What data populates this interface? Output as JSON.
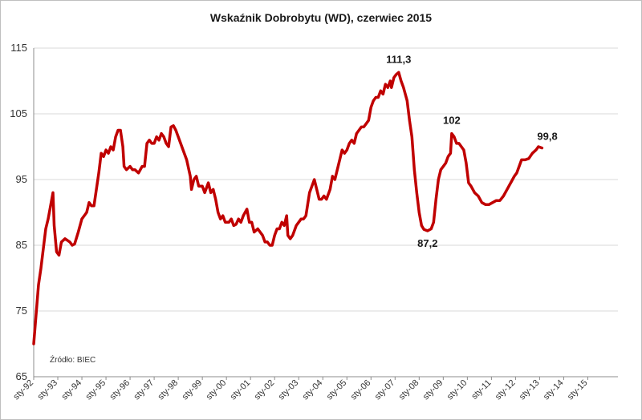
{
  "chart_data": {
    "type": "line",
    "title": "Wskaźnik Dobrobytu (WD), czerwiec 2015",
    "source_note": "Źródło: BIEC",
    "xlabel": "",
    "ylabel": "",
    "ylim": [
      65,
      115
    ],
    "yticks": [
      65,
      75,
      85,
      95,
      105,
      115
    ],
    "xlim": [
      1992.0,
      2016.25
    ],
    "grid": true,
    "legend": "none",
    "color": "#c00000",
    "x_tick_labels": [
      {
        "x": 1992,
        "label": "sty-92"
      },
      {
        "x": 1993,
        "label": "sty-93"
      },
      {
        "x": 1994,
        "label": "sty-94"
      },
      {
        "x": 1995,
        "label": "sty-95"
      },
      {
        "x": 1996,
        "label": "sty-96"
      },
      {
        "x": 1997,
        "label": "sty-97"
      },
      {
        "x": 1998,
        "label": "sty-98"
      },
      {
        "x": 1999,
        "label": "sty-99"
      },
      {
        "x": 2000,
        "label": "sty-00"
      },
      {
        "x": 2001,
        "label": "sty-01"
      },
      {
        "x": 2002,
        "label": "sty-02"
      },
      {
        "x": 2003,
        "label": "sty-03"
      },
      {
        "x": 2004,
        "label": "sty-04"
      },
      {
        "x": 2005,
        "label": "sty-05"
      },
      {
        "x": 2006,
        "label": "sty-06"
      },
      {
        "x": 2007,
        "label": "sty-07"
      },
      {
        "x": 2008,
        "label": "sty-08"
      },
      {
        "x": 2009,
        "label": "sty-09"
      },
      {
        "x": 2010,
        "label": "sty-10"
      },
      {
        "x": 2011,
        "label": "sty-11"
      },
      {
        "x": 2012,
        "label": "sty-12"
      },
      {
        "x": 2013,
        "label": "sty-13"
      },
      {
        "x": 2014,
        "label": "sty-14"
      },
      {
        "x": 2015,
        "label": "sty-15"
      }
    ],
    "series": [
      {
        "name": "",
        "points": [
          [
            1992.0,
            70.0
          ],
          [
            1992.1,
            74.5
          ],
          [
            1992.2,
            79.0
          ],
          [
            1992.3,
            81.5
          ],
          [
            1992.4,
            84.5
          ],
          [
            1992.5,
            87.5
          ],
          [
            1992.6,
            89.0
          ],
          [
            1992.7,
            91.0
          ],
          [
            1992.8,
            93.0
          ],
          [
            1992.85,
            88.0
          ],
          [
            1992.95,
            84.0
          ],
          [
            1993.05,
            83.5
          ],
          [
            1993.15,
            85.5
          ],
          [
            1993.3,
            86.0
          ],
          [
            1993.5,
            85.5
          ],
          [
            1993.6,
            85.0
          ],
          [
            1993.7,
            85.2
          ],
          [
            1993.85,
            87.0
          ],
          [
            1994.0,
            89.0
          ],
          [
            1994.1,
            89.5
          ],
          [
            1994.2,
            90.0
          ],
          [
            1994.3,
            91.5
          ],
          [
            1994.4,
            91.0
          ],
          [
            1994.5,
            91.0
          ],
          [
            1994.6,
            93.5
          ],
          [
            1994.7,
            96.0
          ],
          [
            1994.8,
            99.0
          ],
          [
            1994.9,
            98.5
          ],
          [
            1995.0,
            99.5
          ],
          [
            1995.1,
            99.0
          ],
          [
            1995.2,
            100.0
          ],
          [
            1995.3,
            99.5
          ],
          [
            1995.4,
            101.5
          ],
          [
            1995.5,
            102.5
          ],
          [
            1995.6,
            102.5
          ],
          [
            1995.7,
            100.0
          ],
          [
            1995.75,
            97.0
          ],
          [
            1995.85,
            96.5
          ],
          [
            1996.0,
            97.0
          ],
          [
            1996.1,
            96.5
          ],
          [
            1996.2,
            96.5
          ],
          [
            1996.35,
            96.0
          ],
          [
            1996.5,
            97.0
          ],
          [
            1996.6,
            97.0
          ],
          [
            1996.7,
            100.5
          ],
          [
            1996.8,
            101.0
          ],
          [
            1996.9,
            100.5
          ],
          [
            1997.0,
            100.5
          ],
          [
            1997.1,
            101.5
          ],
          [
            1997.2,
            101.0
          ],
          [
            1997.3,
            102.0
          ],
          [
            1997.4,
            101.5
          ],
          [
            1997.5,
            100.5
          ],
          [
            1997.6,
            100.0
          ],
          [
            1997.7,
            103.0
          ],
          [
            1997.8,
            103.2
          ],
          [
            1997.9,
            102.5
          ],
          [
            1998.0,
            101.5
          ],
          [
            1998.1,
            100.5
          ],
          [
            1998.2,
            99.5
          ],
          [
            1998.35,
            98.0
          ],
          [
            1998.5,
            95.5
          ],
          [
            1998.55,
            93.5
          ],
          [
            1998.65,
            95.0
          ],
          [
            1998.75,
            95.5
          ],
          [
            1998.85,
            94.0
          ],
          [
            1999.0,
            94.0
          ],
          [
            1999.1,
            93.0
          ],
          [
            1999.25,
            94.5
          ],
          [
            1999.35,
            93.0
          ],
          [
            1999.45,
            93.5
          ],
          [
            1999.55,
            92.0
          ],
          [
            1999.65,
            90.0
          ],
          [
            1999.75,
            89.0
          ],
          [
            1999.85,
            89.5
          ],
          [
            1999.95,
            88.5
          ],
          [
            2000.1,
            88.5
          ],
          [
            2000.2,
            89.0
          ],
          [
            2000.3,
            88.0
          ],
          [
            2000.4,
            88.2
          ],
          [
            2000.5,
            89.0
          ],
          [
            2000.6,
            88.5
          ],
          [
            2000.7,
            89.5
          ],
          [
            2000.85,
            90.5
          ],
          [
            2000.95,
            88.5
          ],
          [
            2001.05,
            88.5
          ],
          [
            2001.15,
            87.0
          ],
          [
            2001.3,
            87.5
          ],
          [
            2001.4,
            87.0
          ],
          [
            2001.5,
            86.5
          ],
          [
            2001.6,
            85.5
          ],
          [
            2001.7,
            85.5
          ],
          [
            2001.8,
            85.0
          ],
          [
            2001.9,
            85.0
          ],
          [
            2002.0,
            86.5
          ],
          [
            2002.1,
            87.5
          ],
          [
            2002.2,
            87.5
          ],
          [
            2002.3,
            88.5
          ],
          [
            2002.4,
            88.0
          ],
          [
            2002.5,
            89.5
          ],
          [
            2002.55,
            86.5
          ],
          [
            2002.65,
            86.0
          ],
          [
            2002.75,
            86.5
          ],
          [
            2002.9,
            88.0
          ],
          [
            2003.0,
            88.5
          ],
          [
            2003.1,
            89.0
          ],
          [
            2003.2,
            89.0
          ],
          [
            2003.3,
            89.5
          ],
          [
            2003.45,
            93.0
          ],
          [
            2003.55,
            94.0
          ],
          [
            2003.65,
            95.0
          ],
          [
            2003.75,
            93.5
          ],
          [
            2003.85,
            92.0
          ],
          [
            2003.95,
            92.0
          ],
          [
            2004.05,
            92.5
          ],
          [
            2004.15,
            92.0
          ],
          [
            2004.3,
            93.5
          ],
          [
            2004.4,
            95.5
          ],
          [
            2004.5,
            95.0
          ],
          [
            2004.6,
            96.5
          ],
          [
            2004.7,
            98.0
          ],
          [
            2004.8,
            99.5
          ],
          [
            2004.9,
            99.0
          ],
          [
            2005.0,
            99.5
          ],
          [
            2005.1,
            100.5
          ],
          [
            2005.2,
            101.0
          ],
          [
            2005.3,
            100.5
          ],
          [
            2005.4,
            102.0
          ],
          [
            2005.5,
            102.5
          ],
          [
            2005.6,
            103.0
          ],
          [
            2005.7,
            103.0
          ],
          [
            2005.8,
            103.5
          ],
          [
            2005.9,
            104.0
          ],
          [
            2006.0,
            106.0
          ],
          [
            2006.1,
            107.0
          ],
          [
            2006.2,
            107.5
          ],
          [
            2006.3,
            107.5
          ],
          [
            2006.4,
            108.5
          ],
          [
            2006.5,
            108.0
          ],
          [
            2006.6,
            109.5
          ],
          [
            2006.7,
            109.0
          ],
          [
            2006.8,
            110.0
          ],
          [
            2006.85,
            109.0
          ],
          [
            2006.95,
            110.5
          ],
          [
            2007.05,
            111.0
          ],
          [
            2007.15,
            111.3
          ],
          [
            2007.25,
            110.0
          ],
          [
            2007.35,
            109.0
          ],
          [
            2007.5,
            107.0
          ],
          [
            2007.6,
            104.0
          ],
          [
            2007.7,
            101.5
          ],
          [
            2007.8,
            96.5
          ],
          [
            2007.9,
            93.0
          ],
          [
            2008.0,
            90.0
          ],
          [
            2008.1,
            88.0
          ],
          [
            2008.2,
            87.4
          ],
          [
            2008.35,
            87.2
          ],
          [
            2008.5,
            87.5
          ],
          [
            2008.6,
            88.5
          ],
          [
            2008.7,
            92.0
          ],
          [
            2008.8,
            95.0
          ],
          [
            2008.9,
            96.5
          ],
          [
            2009.0,
            97.0
          ],
          [
            2009.1,
            97.5
          ],
          [
            2009.2,
            98.5
          ],
          [
            2009.3,
            99.0
          ],
          [
            2009.35,
            102.0
          ],
          [
            2009.45,
            101.5
          ],
          [
            2009.55,
            100.5
          ],
          [
            2009.65,
            100.5
          ],
          [
            2009.75,
            100.0
          ],
          [
            2009.85,
            99.5
          ],
          [
            2009.95,
            97.5
          ],
          [
            2010.05,
            94.5
          ],
          [
            2010.15,
            94.0
          ],
          [
            2010.3,
            93.0
          ],
          [
            2010.45,
            92.5
          ],
          [
            2010.6,
            91.5
          ],
          [
            2010.75,
            91.2
          ],
          [
            2010.9,
            91.2
          ],
          [
            2011.05,
            91.5
          ],
          [
            2011.2,
            91.8
          ],
          [
            2011.35,
            91.8
          ],
          [
            2011.5,
            92.5
          ],
          [
            2011.65,
            93.5
          ],
          [
            2011.8,
            94.5
          ],
          [
            2011.95,
            95.5
          ],
          [
            2012.05,
            96.0
          ],
          [
            2012.15,
            97.0
          ],
          [
            2012.25,
            98.0
          ],
          [
            2012.4,
            98.0
          ],
          [
            2012.55,
            98.2
          ],
          [
            2012.7,
            99.0
          ],
          [
            2012.85,
            99.5
          ],
          [
            2012.95,
            100.0
          ],
          [
            2013.1,
            99.8
          ]
        ]
      }
    ],
    "annotations": [
      {
        "x": 2007.15,
        "y": 111.3,
        "label": "111,3",
        "position": "above"
      },
      {
        "x": 2008.35,
        "y": 87.2,
        "label": "87,2",
        "position": "below"
      },
      {
        "x": 2009.35,
        "y": 102.0,
        "label": "102",
        "position": "above"
      },
      {
        "x": 2013.1,
        "y": 99.8,
        "label": "99,8",
        "position": "above-right"
      }
    ]
  }
}
